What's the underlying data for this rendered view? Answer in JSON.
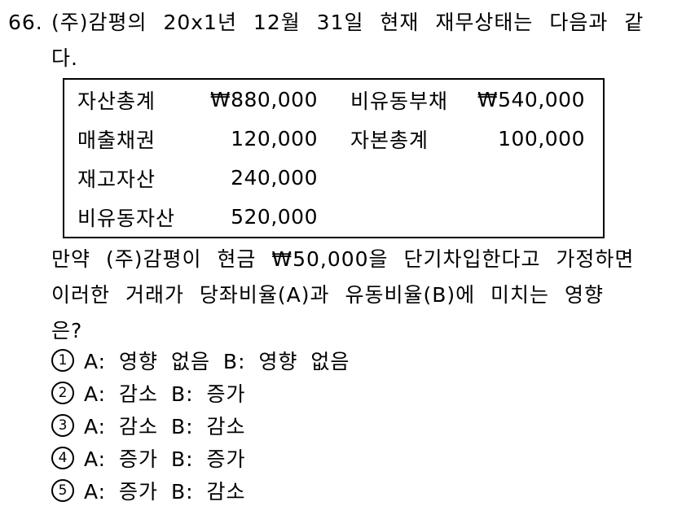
{
  "question": {
    "number": "66.",
    "intro_line1": "(주)감평의 20x1년 12월 31일 현재 재무상태는 다음과 같",
    "intro_line2": "다."
  },
  "table": {
    "rows": [
      {
        "label_left": "자산총계",
        "value_left": "₩880,000",
        "label_right": "비유동부채",
        "value_right": "₩540,000"
      },
      {
        "label_left": "매출채권",
        "value_left": "120,000",
        "label_right": "자본총계",
        "value_right": "100,000"
      },
      {
        "label_left": "재고자산",
        "value_left": "240,000",
        "label_right": "",
        "value_right": ""
      },
      {
        "label_left": "비유동자산",
        "value_left": "520,000",
        "label_right": "",
        "value_right": ""
      }
    ]
  },
  "body": {
    "line1": "만약 (주)감평이 현금 ₩50,000을 단기차입한다고 가정하면",
    "line2": "이러한 거래가 당좌비율(A)과 유동비율(B)에 미치는 영향",
    "line3": "은?"
  },
  "choices": [
    {
      "number": "1",
      "label": "A: 영향 없음 B: 영향 없음"
    },
    {
      "number": "2",
      "label": "A: 감소 B: 증가"
    },
    {
      "number": "3",
      "label": "A: 감소 B: 감소"
    },
    {
      "number": "4",
      "label": "A: 증가 B: 증가"
    },
    {
      "number": "5",
      "label": "A: 증가 B: 감소"
    }
  ],
  "colors": {
    "background": "#ffffff",
    "text": "#000000"
  }
}
